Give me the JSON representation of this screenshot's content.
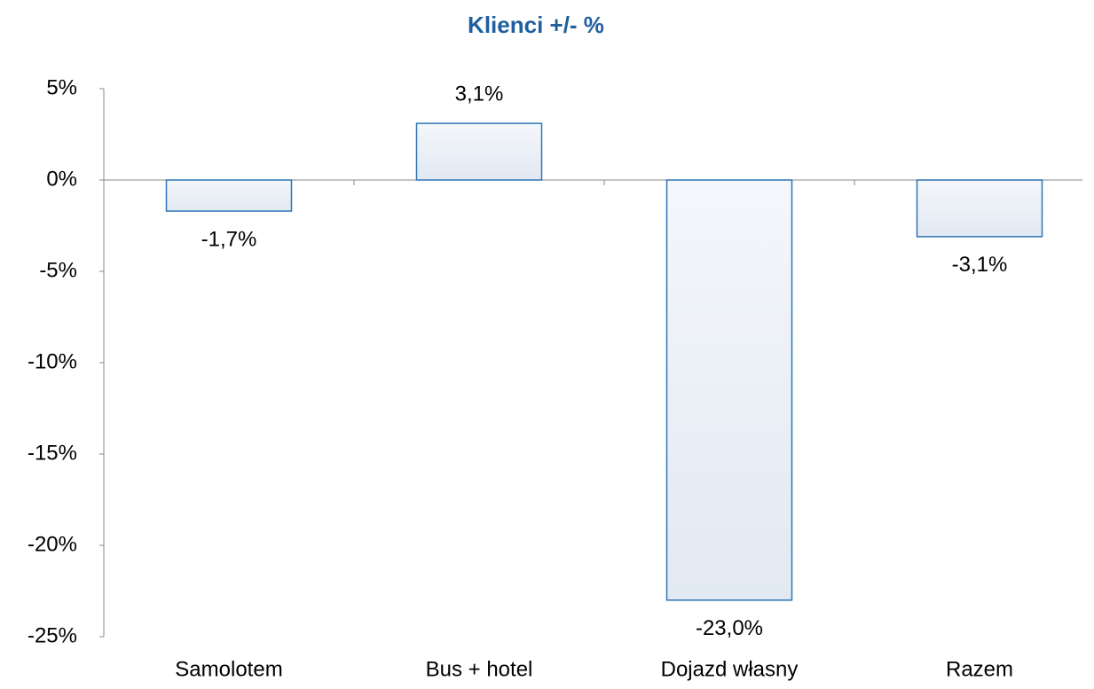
{
  "chart_data": {
    "type": "bar",
    "title": "Klienci +/- %",
    "categories": [
      "Samolotem",
      "Bus + hotel",
      "Dojazd własny",
      "Razem"
    ],
    "values": [
      -1.7,
      3.1,
      -23.0,
      -3.1
    ],
    "value_labels": [
      "-1,7%",
      "3,1%",
      "-23,0%",
      "-3,1%"
    ],
    "color": "#2e75b6",
    "ylim": [
      -25,
      5
    ],
    "yticks": [
      {
        "value": -25,
        "label": "-25%"
      },
      {
        "value": -20,
        "label": "-20%"
      },
      {
        "value": -15,
        "label": "-15%"
      },
      {
        "value": -10,
        "label": "-10%"
      },
      {
        "value": -5,
        "label": "-5%"
      },
      {
        "value": 0,
        "label": "0%"
      },
      {
        "value": 5,
        "label": "5%"
      }
    ],
    "grid": false
  }
}
